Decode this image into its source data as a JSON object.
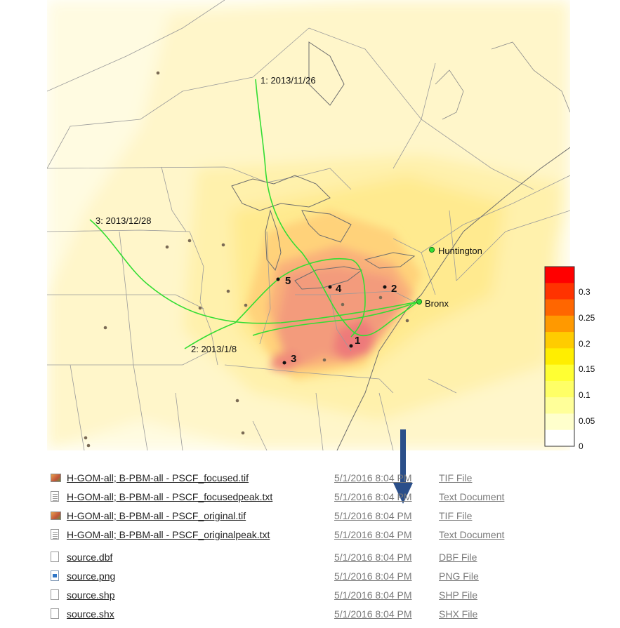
{
  "map": {
    "trajectory_labels": [
      "1: 2013/11/26",
      "2: 2013/1/8",
      "3: 2013/12/28"
    ],
    "receptor_labels": [
      "Huntington",
      "Bronx"
    ],
    "source_numbers": [
      "1",
      "2",
      "3",
      "4",
      "5"
    ],
    "legend": {
      "ticks": [
        "0.3",
        "0.25",
        "0.2",
        "0.15",
        "0.1",
        "0.05",
        "0"
      ],
      "colors": [
        "#ff0000",
        "#ff3300",
        "#ff6600",
        "#ff9900",
        "#ffcc00",
        "#ffee00",
        "#ffff33",
        "#ffff66",
        "#ffff99",
        "#ffffcc",
        "#ffffff"
      ]
    },
    "trajectory_color": "#33dd33"
  },
  "files": [
    {
      "name": "H-GOM-all; B-PBM-all - PSCF_focused.tif",
      "date": "5/1/2016 8:04 PM",
      "type": "TIF File",
      "icon": "tif-image-icon"
    },
    {
      "name": "H-GOM-all; B-PBM-all - PSCF_focusedpeak.txt",
      "date": "5/1/2016 8:04 PM",
      "type": "Text Document",
      "icon": "text-document-icon"
    },
    {
      "name": "H-GOM-all; B-PBM-all - PSCF_original.tif",
      "date": "5/1/2016 8:04 PM",
      "type": "TIF File",
      "icon": "tif-image-icon"
    },
    {
      "name": "H-GOM-all; B-PBM-all - PSCF_originalpeak.txt",
      "date": "5/1/2016 8:04 PM",
      "type": "Text Document",
      "icon": "text-document-icon"
    },
    {
      "name": "source.dbf",
      "date": "5/1/2016 8:04 PM",
      "type": "DBF File",
      "icon": "blank-file-icon"
    },
    {
      "name": "source.png",
      "date": "5/1/2016 8:04 PM",
      "type": "PNG File",
      "icon": "png-image-icon"
    },
    {
      "name": "source.shp",
      "date": "5/1/2016 8:04 PM",
      "type": "SHP File",
      "icon": "blank-file-icon"
    },
    {
      "name": "source.shx",
      "date": "5/1/2016 8:04 PM",
      "type": "SHX File",
      "icon": "blank-file-icon"
    }
  ],
  "arrow_color": "#2b4f8a"
}
